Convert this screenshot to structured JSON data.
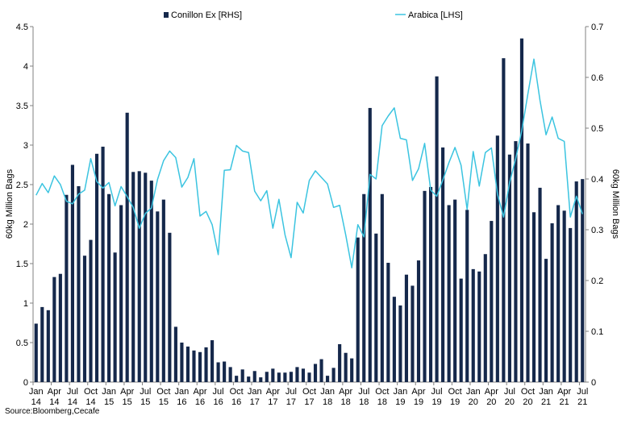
{
  "chart_data": {
    "type": "bar-line",
    "title": "",
    "source": "Source:Bloomberg,Cecafe",
    "left_axis": {
      "label": "60kg Million Bags",
      "ylim": [
        0,
        4.5
      ],
      "ticks": [
        "0",
        "0.5",
        "1",
        "1.5",
        "2",
        "2.5",
        "3",
        "3.5",
        "4",
        "4.5"
      ]
    },
    "right_axis": {
      "label": "60kg Million Bags",
      "ylim": [
        0,
        0.7
      ],
      "ticks": [
        "0",
        "0.1",
        "0.2",
        "0.3",
        "0.4",
        "0.5",
        "0.6",
        "0.7"
      ]
    },
    "x_tick_labels": [
      {
        "m": "Jan",
        "y": "14"
      },
      {
        "m": "Apr",
        "y": "14"
      },
      {
        "m": "Jul",
        "y": "14"
      },
      {
        "m": "Oct",
        "y": "14"
      },
      {
        "m": "Jan",
        "y": "15"
      },
      {
        "m": "Apr",
        "y": "15"
      },
      {
        "m": "Jul",
        "y": "15"
      },
      {
        "m": "Oct",
        "y": "15"
      },
      {
        "m": "Jan",
        "y": "16"
      },
      {
        "m": "Apr",
        "y": "16"
      },
      {
        "m": "Jul",
        "y": "16"
      },
      {
        "m": "Oct",
        "y": "16"
      },
      {
        "m": "Jan",
        "y": "17"
      },
      {
        "m": "Apr",
        "y": "17"
      },
      {
        "m": "Jul",
        "y": "17"
      },
      {
        "m": "Oct",
        "y": "17"
      },
      {
        "m": "Jan",
        "y": "18"
      },
      {
        "m": "Apr",
        "y": "18"
      },
      {
        "m": "Jul",
        "y": "18"
      },
      {
        "m": "Oct",
        "y": "18"
      },
      {
        "m": "Jan",
        "y": "19"
      },
      {
        "m": "Apr",
        "y": "19"
      },
      {
        "m": "Jul",
        "y": "19"
      },
      {
        "m": "Oct",
        "y": "19"
      },
      {
        "m": "Jan",
        "y": "20"
      },
      {
        "m": "Apr",
        "y": "20"
      },
      {
        "m": "Jul",
        "y": "20"
      },
      {
        "m": "Oct",
        "y": "20"
      },
      {
        "m": "Jan",
        "y": "21"
      },
      {
        "m": "Apr",
        "y": "21"
      },
      {
        "m": "Jul",
        "y": "21"
      }
    ],
    "legend": {
      "placement": "top"
    },
    "series": [
      {
        "name": "Conillon Ex [RHS]",
        "type": "bar",
        "color": "#15284b",
        "values": [
          0.74,
          0.95,
          0.91,
          1.33,
          1.37,
          2.37,
          2.75,
          2.48,
          1.6,
          1.8,
          2.89,
          2.98,
          2.38,
          1.64,
          2.24,
          3.41,
          2.66,
          2.67,
          2.65,
          2.55,
          2.16,
          2.31,
          1.89,
          0.7,
          0.5,
          0.45,
          0.4,
          0.38,
          0.44,
          0.53,
          0.25,
          0.26,
          0.19,
          0.08,
          0.16,
          0.07,
          0.14,
          0.06,
          0.13,
          0.17,
          0.12,
          0.12,
          0.13,
          0.19,
          0.17,
          0.12,
          0.23,
          0.29,
          0.08,
          0.18,
          0.48,
          0.37,
          0.3,
          1.83,
          2.38,
          3.47,
          1.88,
          2.38,
          1.51,
          1.08,
          0.97,
          1.36,
          1.22,
          1.54,
          2.42,
          2.47,
          3.87,
          2.97,
          2.24,
          2.31,
          1.31,
          2.18,
          1.43,
          1.4,
          1.62,
          2.04,
          3.12,
          4.1,
          2.88,
          3.05,
          4.35,
          3.02,
          2.15,
          2.46,
          1.56,
          2.01,
          2.24,
          2.17,
          1.95,
          2.54,
          2.57
        ]
      },
      {
        "name": "Arabica [LHS]",
        "type": "line",
        "color": "#3bc4e0",
        "values": [
          0.368,
          0.391,
          0.373,
          0.406,
          0.389,
          0.356,
          0.351,
          0.37,
          0.378,
          0.44,
          0.395,
          0.382,
          0.393,
          0.347,
          0.385,
          0.365,
          0.344,
          0.303,
          0.332,
          0.343,
          0.399,
          0.436,
          0.455,
          0.442,
          0.384,
          0.403,
          0.44,
          0.327,
          0.336,
          0.31,
          0.251,
          0.417,
          0.418,
          0.466,
          0.455,
          0.452,
          0.376,
          0.357,
          0.377,
          0.303,
          0.36,
          0.29,
          0.245,
          0.354,
          0.333,
          0.397,
          0.416,
          0.403,
          0.39,
          0.344,
          0.348,
          0.29,
          0.225,
          0.31,
          0.286,
          0.409,
          0.4,
          0.505,
          0.524,
          0.54,
          0.48,
          0.477,
          0.397,
          0.42,
          0.47,
          0.378,
          0.366,
          0.398,
          0.432,
          0.462,
          0.427,
          0.34,
          0.454,
          0.386,
          0.452,
          0.461,
          0.37,
          0.325,
          0.393,
          0.44,
          0.495,
          0.567,
          0.636,
          0.555,
          0.487,
          0.522,
          0.48,
          0.474,
          0.325,
          0.366,
          0.331
        ]
      }
    ]
  }
}
